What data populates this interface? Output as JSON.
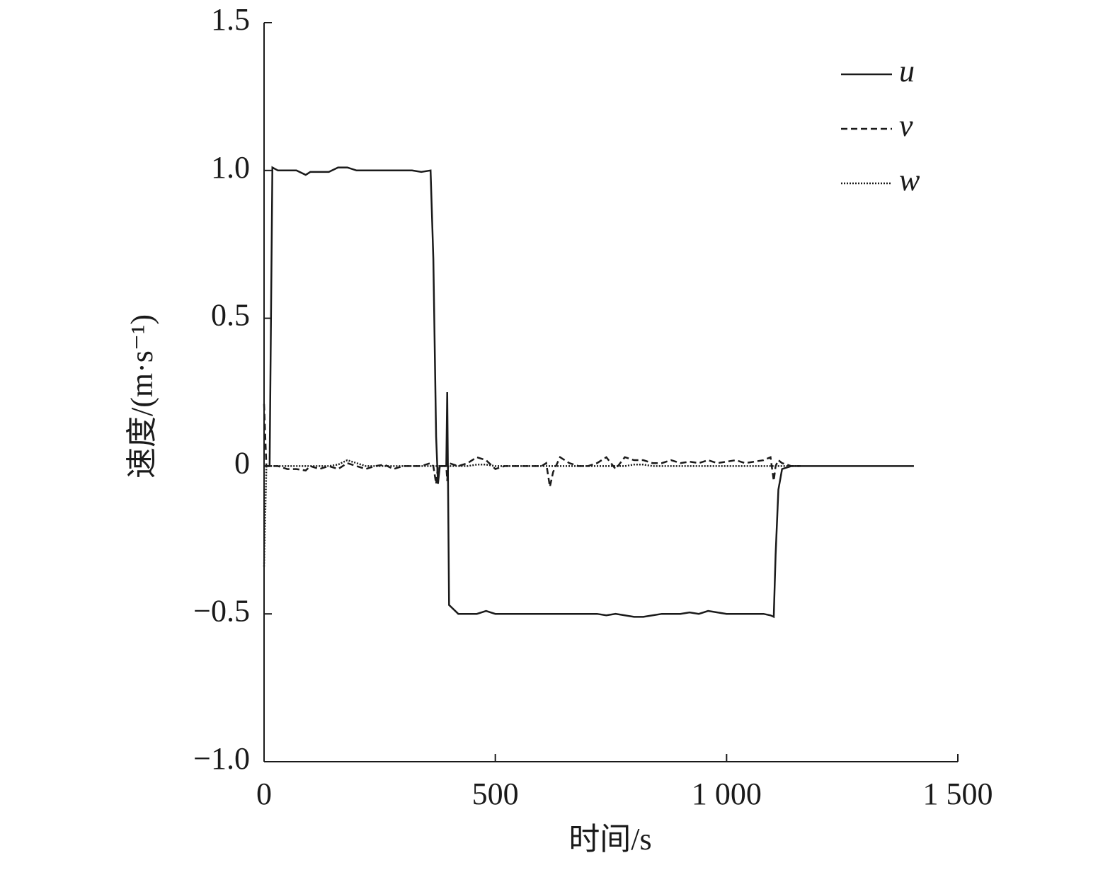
{
  "chart_data": {
    "type": "line",
    "x_label": "时间/s",
    "y_label": "速度/(m·s⁻¹)",
    "x": [
      0,
      5,
      12,
      18,
      30,
      50,
      70,
      90,
      100,
      120,
      140,
      160,
      180,
      200,
      220,
      240,
      260,
      280,
      300,
      320,
      340,
      360,
      366,
      372,
      376,
      380,
      385,
      394,
      396,
      398,
      400,
      420,
      440,
      460,
      480,
      500,
      520,
      540,
      560,
      580,
      600,
      610,
      618,
      625,
      640,
      660,
      680,
      700,
      720,
      740,
      760,
      780,
      800,
      820,
      840,
      860,
      880,
      900,
      920,
      940,
      960,
      980,
      1000,
      1020,
      1040,
      1060,
      1080,
      1095,
      1102,
      1106,
      1112,
      1120,
      1140,
      1160,
      1200,
      1250,
      1300,
      1350,
      1405
    ],
    "series": [
      {
        "name": "u",
        "color": "#1a1a1a",
        "style": "solid",
        "values": [
          0,
          0,
          0,
          1.01,
          1.0,
          1.0,
          1.0,
          0.985,
          0.995,
          0.995,
          0.995,
          1.01,
          1.01,
          1.0,
          1.0,
          1.0,
          1.0,
          1.0,
          1.0,
          1.0,
          0.995,
          1.0,
          0.7,
          0.1,
          -0.06,
          0,
          0,
          0,
          0.25,
          -0.1,
          -0.47,
          -0.5,
          -0.5,
          -0.5,
          -0.49,
          -0.5,
          -0.5,
          -0.5,
          -0.5,
          -0.5,
          -0.5,
          -0.5,
          -0.5,
          -0.5,
          -0.5,
          -0.5,
          -0.5,
          -0.5,
          -0.5,
          -0.505,
          -0.5,
          -0.505,
          -0.51,
          -0.51,
          -0.505,
          -0.5,
          -0.5,
          -0.5,
          -0.495,
          -0.5,
          -0.49,
          -0.495,
          -0.5,
          -0.5,
          -0.5,
          -0.5,
          -0.5,
          -0.505,
          -0.51,
          -0.3,
          -0.08,
          -0.01,
          0,
          0,
          0,
          0,
          0,
          0,
          0
        ]
      },
      {
        "name": "v",
        "color": "#1a1a1a",
        "style": "dashed",
        "values": [
          0.21,
          0,
          0,
          0,
          0,
          -0.01,
          -0.01,
          -0.015,
          0,
          -0.01,
          0,
          -0.01,
          0.01,
          0,
          -0.01,
          0,
          0.005,
          -0.01,
          0,
          0,
          0,
          0.01,
          0,
          -0.06,
          0,
          0,
          0,
          0,
          -0.05,
          0,
          0.01,
          0,
          0.01,
          0.03,
          0.02,
          -0.01,
          0,
          0,
          0,
          0,
          0,
          0.01,
          -0.07,
          -0.02,
          0.03,
          0.01,
          0,
          0,
          0.01,
          0.03,
          -0.01,
          0.03,
          0.02,
          0.02,
          0.01,
          0.01,
          0.02,
          0.01,
          0.015,
          0.01,
          0.02,
          0.01,
          0.015,
          0.02,
          0.01,
          0.015,
          0.02,
          0.03,
          -0.05,
          0,
          0.02,
          0.01,
          0,
          0,
          null,
          null,
          null,
          null,
          null
        ]
      },
      {
        "name": "w",
        "color": "#1a1a1a",
        "style": "dotted",
        "values": [
          -0.34,
          0,
          0,
          0,
          0,
          0,
          0,
          0,
          0,
          0,
          0,
          0.005,
          0.02,
          0.01,
          0,
          0,
          0,
          0,
          0,
          0,
          0,
          0,
          0,
          0,
          0,
          0,
          0,
          0,
          0,
          0,
          0,
          0,
          0,
          0.005,
          0.005,
          0,
          0,
          0,
          0,
          0,
          0,
          0,
          0,
          0,
          0,
          0,
          0,
          0,
          0,
          0,
          0,
          0,
          0.005,
          0.005,
          0,
          0,
          0,
          0,
          0,
          0,
          0,
          0,
          0,
          0,
          0,
          0,
          0,
          0,
          0,
          0,
          0,
          0,
          0,
          0,
          null,
          null,
          null,
          null,
          null
        ]
      }
    ],
    "xlim": [
      0,
      1500
    ],
    "xticks": [
      0,
      500,
      {
        "value": 1000,
        "label": "1 000"
      },
      {
        "value": 1500,
        "label": "1 500"
      }
    ],
    "ylim": [
      -1,
      1.5
    ],
    "yticks": [
      {
        "value": -1,
        "label": "−1.0"
      },
      {
        "value": -0.5,
        "label": "−0.5"
      },
      0,
      0.5,
      {
        "value": 1,
        "label": "1.0"
      },
      1.5
    ],
    "grid": false,
    "legend": "upper right"
  }
}
